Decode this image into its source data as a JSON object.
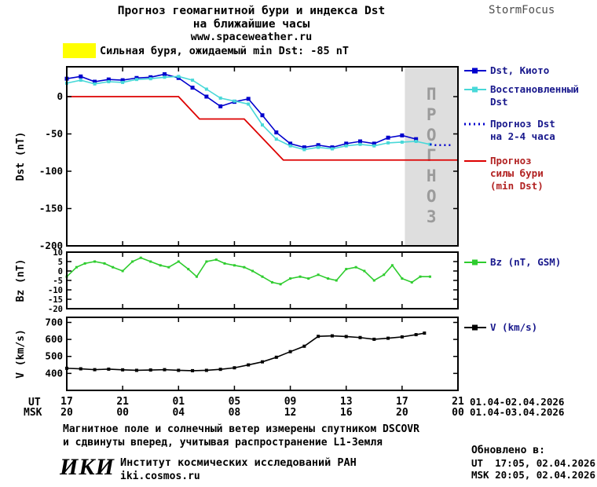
{
  "header": {
    "title_line1": "Прогноз геомагнитной бури и индекса Dst",
    "title_line2": "на ближайшие часы",
    "site": "www.spaceweather.ru",
    "brand": "StormFocus"
  },
  "alert": {
    "text": "Сильная буря, ожидаемый min Dst: -85 nT",
    "highlight_color": "#ffff00"
  },
  "axis_footer": {
    "ut_label": "UT",
    "msk_label": "MSK",
    "ut_dates": "01.04-02.04.2026",
    "msk_dates": "01.04-03.04.2026"
  },
  "footnote": {
    "line1": "Магнитное поле и солнечный ветер измерены спутником DSCOVR",
    "line2": "и сдвинуты вперед, учитывая распространение L1-Земля"
  },
  "updated": {
    "title": "Обновлено в:",
    "ut": "UT  17:05, 02.04.2026",
    "msk": "MSK 20:05, 02.04.2026"
  },
  "org": {
    "logo": "ИКИ",
    "name": "Институт космических исследований РАН",
    "site": "iki.cosmos.ru"
  },
  "time_axis": {
    "xlim": [
      0,
      28
    ],
    "xticks": [
      0,
      4,
      8,
      12,
      16,
      20,
      24,
      28
    ],
    "ut_labels": [
      "17",
      "21",
      "01",
      "05",
      "09",
      "13",
      "17",
      "21"
    ],
    "msk_labels": [
      "20",
      "00",
      "04",
      "08",
      "12",
      "16",
      "20",
      "00"
    ]
  },
  "chart_data": [
    {
      "type": "line",
      "ylabel": "Dst (nT)",
      "ylim": [
        -200,
        40
      ],
      "yticks": [
        0,
        -50,
        -100,
        -150,
        -200
      ],
      "forecast_region": {
        "x_start": 24.2,
        "x_end": 28,
        "label": "ПРОГНОЗ",
        "fill": "#dedede",
        "label_color": "#9b9b9b"
      },
      "series": [
        {
          "name": "dst-kyoto",
          "legend": "Dst, Киото",
          "color": "#0000cd",
          "marker": true,
          "marker_size": 5,
          "width": 1.6,
          "x": [
            0,
            1,
            2,
            3,
            4,
            5,
            6,
            7,
            8,
            9,
            10,
            11,
            12,
            13,
            14,
            15,
            16,
            17,
            18,
            19,
            20,
            21,
            22,
            23,
            24,
            25
          ],
          "values": [
            24,
            27,
            20,
            23,
            22,
            25,
            26,
            30,
            25,
            12,
            0,
            -13,
            -7,
            -3,
            -25,
            -48,
            -63,
            -68,
            -65,
            -68,
            -63,
            -60,
            -63,
            -55,
            -52,
            -57
          ]
        },
        {
          "name": "dst-restored",
          "legend": "Восстановленный\nDst",
          "color": "#48d8d8",
          "marker": true,
          "marker_size": 4,
          "width": 1.6,
          "x": [
            0,
            1,
            2,
            3,
            4,
            5,
            6,
            7,
            8,
            9,
            10,
            11,
            12,
            13,
            14,
            15,
            16,
            17,
            18,
            19,
            20,
            21,
            22,
            23,
            24,
            25,
            26
          ],
          "values": [
            18,
            22,
            17,
            20,
            19,
            23,
            24,
            26,
            27,
            22,
            10,
            -2,
            -6,
            -10,
            -38,
            -57,
            -66,
            -71,
            -68,
            -70,
            -66,
            -64,
            -66,
            -62,
            -61,
            -60,
            -64
          ]
        },
        {
          "name": "dst-forecast",
          "legend": "Прогноз Dst\nна 2-4 часа",
          "color": "#0000cd",
          "dash": "2 4",
          "width": 2.5,
          "x": [
            26,
            26.4,
            26.8,
            27.2,
            27.6
          ],
          "values": [
            -64,
            -65,
            -65,
            -65,
            -65
          ]
        },
        {
          "name": "storm-forecast",
          "legend": "Прогноз\nсилы бури\n(min Dst)",
          "color": "#dd0000",
          "width": 1.8,
          "x": [
            0,
            8,
            9.5,
            12.7,
            15.5,
            28
          ],
          "values": [
            0,
            0,
            -30,
            -30,
            -85,
            -85
          ]
        }
      ]
    },
    {
      "type": "line",
      "ylabel": "Bz (nT)",
      "ylim": [
        -20,
        10
      ],
      "yticks": [
        10,
        5,
        0,
        -5,
        -10,
        -15,
        -20
      ],
      "series": [
        {
          "name": "bz-gsm",
          "legend": "Bz (nT, GSM)",
          "color": "#2ecc2e",
          "marker": true,
          "marker_size": 3,
          "width": 1.6,
          "x": [
            0,
            0.7,
            1.3,
            2,
            2.7,
            3.3,
            4,
            4.7,
            5.3,
            6,
            6.7,
            7.3,
            8,
            8.7,
            9.3,
            10,
            10.7,
            11.3,
            12,
            12.7,
            13.3,
            14,
            14.7,
            15.3,
            16,
            16.7,
            17.3,
            18,
            18.7,
            19.3,
            20,
            20.7,
            21.3,
            22,
            22.7,
            23.3,
            24,
            24.7,
            25.3,
            26
          ],
          "values": [
            -3,
            2,
            4,
            5,
            4,
            2,
            0,
            5,
            7,
            5,
            3,
            2,
            5,
            1,
            -3,
            5,
            6,
            4,
            3,
            2,
            0,
            -3,
            -6,
            -7,
            -4,
            -3,
            -4,
            -2,
            -4,
            -5,
            1,
            2,
            0,
            -5,
            -2,
            3,
            -4,
            -6,
            -3,
            -3
          ]
        }
      ]
    },
    {
      "type": "line",
      "ylabel": "V (km/s)",
      "ylim": [
        300,
        730
      ],
      "yticks": [
        700,
        600,
        500,
        400
      ],
      "series": [
        {
          "name": "solar-wind-speed",
          "legend": "V (km/s)",
          "color": "#000000",
          "marker": true,
          "marker_size": 4,
          "width": 1.6,
          "x": [
            0,
            1,
            2,
            3,
            4,
            5,
            6,
            7,
            8,
            9,
            10,
            11,
            12,
            13,
            14,
            15,
            16,
            17,
            18,
            19,
            20,
            21,
            22,
            23,
            24,
            25,
            25.6
          ],
          "values": [
            430,
            427,
            422,
            425,
            421,
            418,
            420,
            422,
            418,
            416,
            418,
            424,
            433,
            450,
            468,
            495,
            528,
            560,
            618,
            621,
            617,
            611,
            601,
            607,
            615,
            628,
            637
          ]
        }
      ]
    }
  ]
}
